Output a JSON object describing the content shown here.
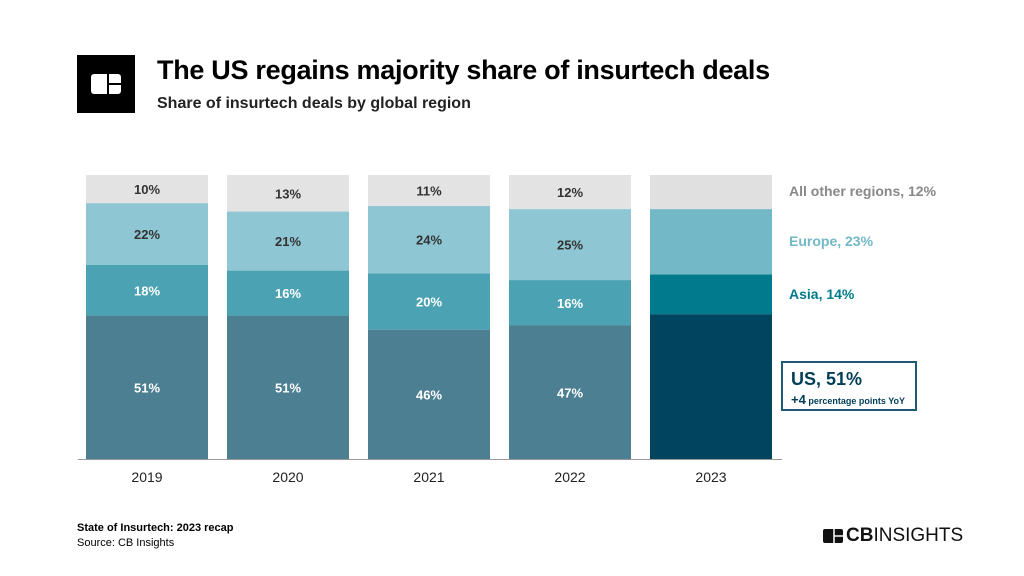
{
  "header": {
    "title": "The US regains majority share of insurtech deals",
    "subtitle": "Share of insurtech deals by global region"
  },
  "footer": {
    "report": "State of Insurtech: 2023 recap",
    "source": "Source: CB Insights",
    "brand_bold": "CB",
    "brand_light": "INSIGHTS"
  },
  "chart_data": {
    "type": "bar",
    "stacked": true,
    "categories": [
      "2019",
      "2020",
      "2021",
      "2022",
      "2023"
    ],
    "series": [
      {
        "name": "US",
        "values": [
          51,
          51,
          46,
          47,
          51
        ],
        "color": "#4d7f93",
        "highlight_color": "#00445f"
      },
      {
        "name": "Asia",
        "values": [
          18,
          16,
          20,
          16,
          14
        ],
        "color": "#4aa2b2",
        "highlight_color": "#007a8c"
      },
      {
        "name": "Europe",
        "values": [
          22,
          21,
          24,
          25,
          23
        ],
        "color": "#8fc6d3",
        "highlight_color": "#72b8c6"
      },
      {
        "name": "All other regions",
        "values": [
          10,
          13,
          11,
          12,
          12
        ],
        "color": "#e3e3e3",
        "highlight_color": "#e0e0e0"
      }
    ],
    "labels_2023": {
      "other": "All other regions, 12%",
      "europe": "Europe, 23%",
      "asia": "Asia, 14%"
    },
    "callout": {
      "main": "US, 51%",
      "delta": "+4",
      "delta_text": "percentage points YoY"
    },
    "grid": false
  }
}
